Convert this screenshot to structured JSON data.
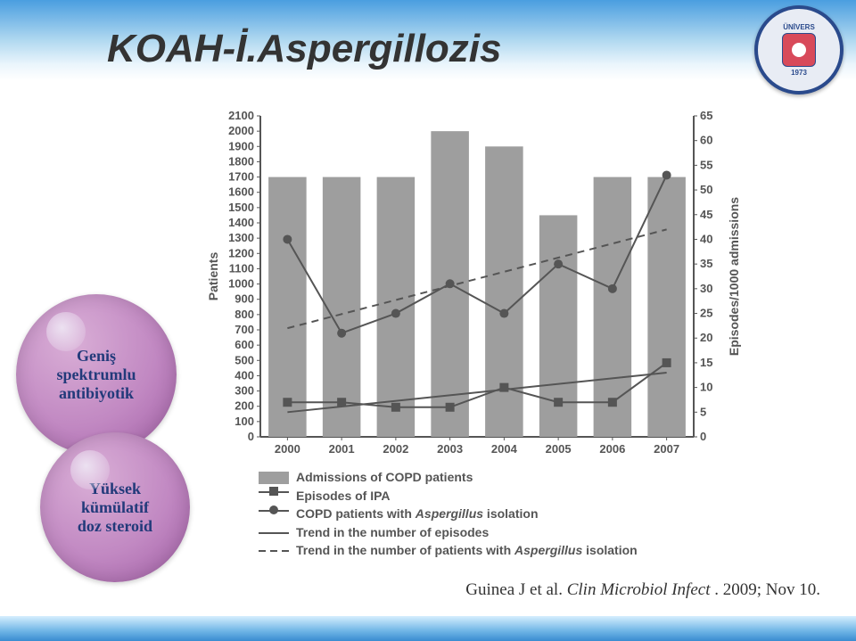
{
  "title": {
    "text": "KOAH-İ.Aspergillozis",
    "style": "font-size:44px"
  },
  "logo": {
    "top": "ÜNİVERS",
    "year": "1973"
  },
  "chart": {
    "type": "bar+line",
    "categories": [
      "2000",
      "2001",
      "2002",
      "2003",
      "2004",
      "2005",
      "2006",
      "2007"
    ],
    "bars": [
      1700,
      1700,
      1700,
      2000,
      1900,
      1450,
      1700,
      1700
    ],
    "line_episodes": [
      7,
      7,
      6,
      6,
      10,
      7,
      7,
      15
    ],
    "line_isolation": [
      40,
      21,
      25,
      31,
      25,
      35,
      30,
      53
    ],
    "trend_episodes": [
      5,
      13
    ],
    "trend_isolation": [
      22,
      42
    ],
    "bar_color": "#9e9e9e",
    "line_color": "#555555",
    "ylabel": "Patients",
    "y2label": "Episodes/1000 admissions",
    "ylim": [
      0,
      2100
    ],
    "ytick_step": 100,
    "y2lim": [
      0,
      65
    ],
    "y2tick_step": 5,
    "plot_bg": "#ffffff",
    "axis_color": "#555555",
    "tick_font": 13
  },
  "legend": [
    {
      "kind": "bar",
      "label": "Admissions of COPD patients"
    },
    {
      "kind": "sq",
      "label": "Episodes of IPA"
    },
    {
      "kind": "dot",
      "label": "COPD patients with Aspergillus isolation",
      "ital": "Aspergillus"
    },
    {
      "kind": "solid",
      "label": "Trend in the number of episodes"
    },
    {
      "kind": "dash",
      "label": "Trend in the number of patients with Aspergillus isolation",
      "ital": "Aspergillus"
    }
  ],
  "bubbles": {
    "fs": "font-size:18px",
    "0": {
      "l1": "Geniş",
      "l2": "spektrumlu",
      "l3": "antibiyotik"
    },
    "1": {
      "l1": "Yüksek",
      "l2": "kümülatif",
      "l3": "doz steroid"
    }
  },
  "citation": {
    "author": "Guinea J et al. ",
    "journal": "Clin Microbiol Infect",
    "rest": ". 2009; Nov 10."
  }
}
